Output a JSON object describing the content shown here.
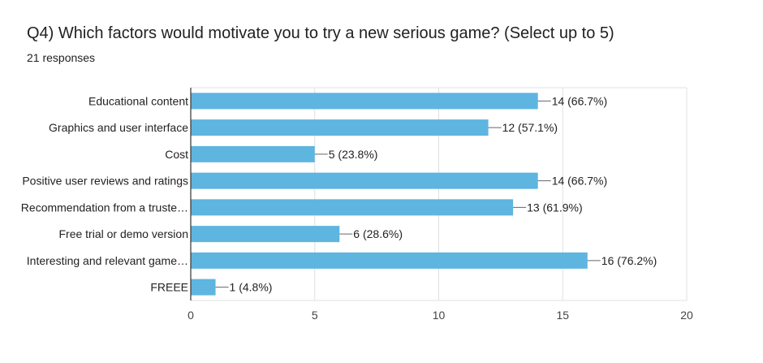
{
  "header": {
    "title": "Q4) Which factors would motivate you to try a new serious game?  (Select up to 5)",
    "subtitle": "21 responses"
  },
  "chart_data": {
    "type": "bar",
    "orientation": "horizontal",
    "categories": [
      "Educational content",
      "Graphics and user interface",
      "Cost",
      "Positive user reviews and ratings",
      "Recommendation from a truste…",
      "Free trial or demo version",
      "Interesting and relevant game…",
      "FREEE"
    ],
    "values": [
      14,
      12,
      5,
      14,
      13,
      6,
      16,
      1
    ],
    "value_labels": [
      "14 (66.7%)",
      "12 (57.1%)",
      "5 (23.8%)",
      "14 (66.7%)",
      "13 (61.9%)",
      "6 (28.6%)",
      "16 (76.2%)",
      "1 (4.8%)"
    ],
    "xlim": [
      0,
      20
    ],
    "xticks": [
      0,
      5,
      10,
      15,
      20
    ],
    "grid": true,
    "bar_color": "#5eb5e0"
  }
}
